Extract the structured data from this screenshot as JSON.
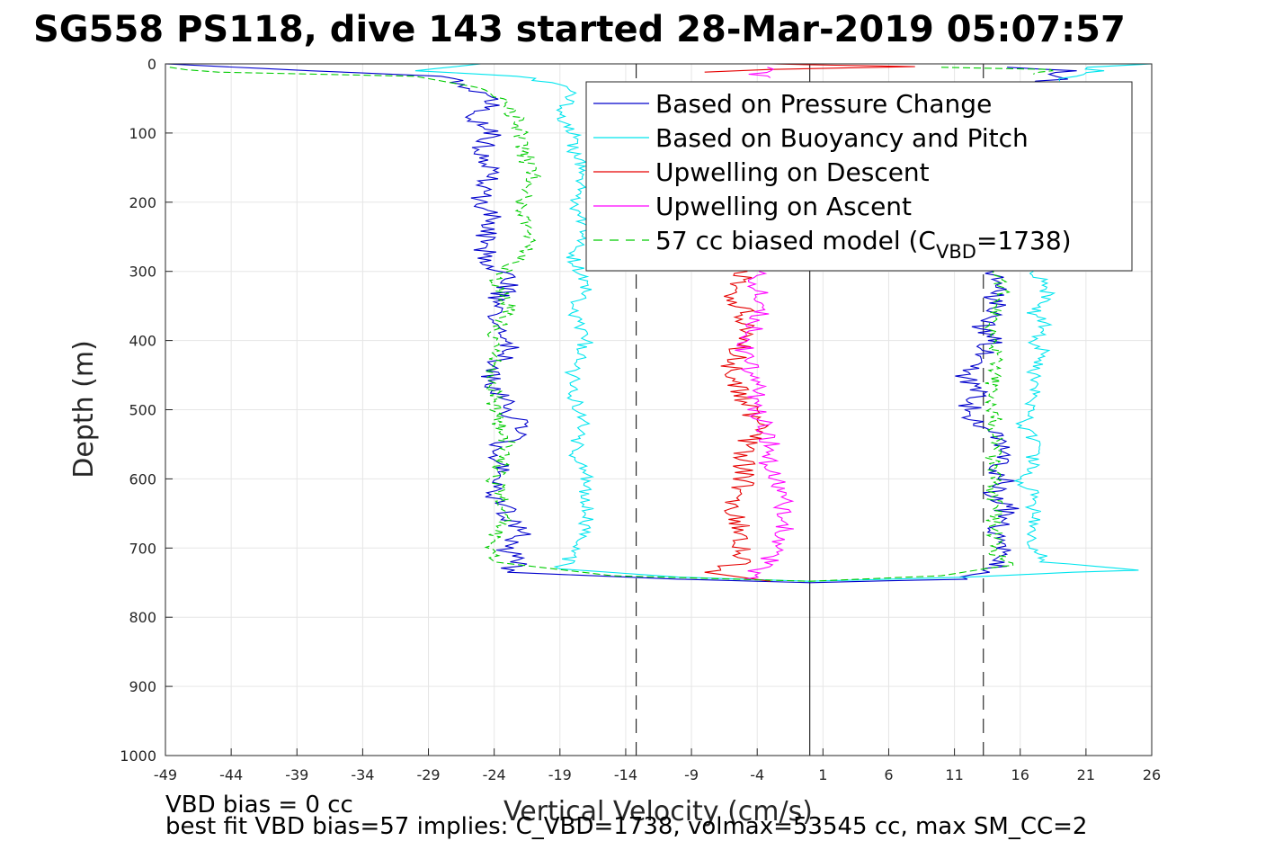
{
  "chart_data": {
    "type": "line",
    "title": "SG558 PS118, dive 143 started 28-Mar-2019 05:07:57",
    "xlabel": "Vertical Velocity (cm/s)",
    "ylabel": "Depth (m)",
    "xlim": [
      -49,
      26
    ],
    "ylim": [
      0,
      1000
    ],
    "y_reversed": true,
    "grid": true,
    "x_ticks": [
      -49,
      -44,
      -39,
      -34,
      -29,
      -24,
      -19,
      -14,
      -9,
      -4,
      1,
      6,
      11,
      16,
      21,
      26
    ],
    "y_ticks": [
      0,
      100,
      200,
      300,
      400,
      500,
      600,
      700,
      800,
      900,
      1000
    ],
    "legend_position": "top-right",
    "reference_lines": [
      {
        "x": 0,
        "style": "solid",
        "color": "#000000"
      },
      {
        "x": -13.2,
        "style": "dashed",
        "color": "#000000"
      },
      {
        "x": 13.2,
        "style": "dashed",
        "color": "#000000"
      }
    ],
    "series": [
      {
        "name": "Based on Pressure Change",
        "color": "#0000cc",
        "style": "solid",
        "points": [
          [
            -49,
            0
          ],
          [
            -38,
            10
          ],
          [
            -28,
            18
          ],
          [
            -26,
            30
          ],
          [
            -25,
            45
          ],
          [
            -24,
            60
          ],
          [
            -26,
            80
          ],
          [
            -24,
            100
          ],
          [
            -25,
            130
          ],
          [
            -24,
            160
          ],
          [
            -25,
            200
          ],
          [
            -24,
            230
          ],
          [
            -25,
            260
          ],
          [
            -24,
            290
          ],
          [
            -23,
            320
          ],
          [
            -24,
            350
          ],
          [
            -24,
            380
          ],
          [
            -23,
            410
          ],
          [
            -24,
            440
          ],
          [
            -24,
            470
          ],
          [
            -23,
            500
          ],
          [
            -22,
            530
          ],
          [
            -24,
            560
          ],
          [
            -23,
            590
          ],
          [
            -24,
            620
          ],
          [
            -23,
            650
          ],
          [
            -22,
            680
          ],
          [
            -23,
            700
          ],
          [
            -22,
            720
          ],
          [
            -23,
            735
          ],
          [
            -10,
            745
          ],
          [
            0,
            750
          ],
          [
            11,
            745
          ],
          [
            14,
            735
          ],
          [
            15,
            715
          ],
          [
            15,
            700
          ],
          [
            14,
            680
          ],
          [
            15,
            660
          ],
          [
            15,
            640
          ],
          [
            14,
            620
          ],
          [
            15,
            600
          ],
          [
            14,
            580
          ],
          [
            15,
            560
          ],
          [
            14,
            540
          ],
          [
            13,
            520
          ],
          [
            12,
            500
          ],
          [
            13,
            480
          ],
          [
            12,
            460
          ],
          [
            12,
            440
          ],
          [
            13,
            420
          ],
          [
            14,
            400
          ],
          [
            13,
            380
          ],
          [
            14,
            360
          ],
          [
            14,
            340
          ],
          [
            15,
            320
          ],
          [
            14,
            300
          ]
        ],
        "top_segment": [
          [
            15,
            5
          ],
          [
            20,
            10
          ],
          [
            18,
            15
          ],
          [
            19,
            22
          ],
          [
            17,
            28
          ]
        ]
      },
      {
        "name": "Based on Buoyancy and Pitch",
        "color": "#00e5ee",
        "style": "solid",
        "points": [
          [
            -25,
            0
          ],
          [
            -30,
            10
          ],
          [
            -22,
            18
          ],
          [
            -19,
            30
          ],
          [
            -18,
            45
          ],
          [
            -19,
            70
          ],
          [
            -18,
            100
          ],
          [
            -18,
            130
          ],
          [
            -17,
            160
          ],
          [
            -18,
            200
          ],
          [
            -17,
            240
          ],
          [
            -18,
            280
          ],
          [
            -17,
            320
          ],
          [
            -18,
            360
          ],
          [
            -17,
            400
          ],
          [
            -18,
            440
          ],
          [
            -18,
            480
          ],
          [
            -17,
            520
          ],
          [
            -18,
            560
          ],
          [
            -17,
            600
          ],
          [
            -17,
            640
          ],
          [
            -17,
            680
          ],
          [
            -18,
            710
          ],
          [
            -19,
            730
          ],
          [
            -10,
            742
          ],
          [
            0,
            748
          ],
          [
            12,
            742
          ],
          [
            20,
            735
          ],
          [
            25,
            732
          ],
          [
            18,
            720
          ],
          [
            17,
            700
          ],
          [
            17,
            680
          ],
          [
            17,
            650
          ],
          [
            17,
            620
          ],
          [
            16,
            600
          ],
          [
            17,
            580
          ],
          [
            17,
            560
          ],
          [
            17,
            540
          ],
          [
            16,
            520
          ],
          [
            17,
            500
          ],
          [
            17,
            480
          ],
          [
            17,
            460
          ],
          [
            17,
            440
          ],
          [
            18,
            420
          ],
          [
            17,
            400
          ],
          [
            18,
            380
          ],
          [
            17,
            360
          ],
          [
            18,
            340
          ],
          [
            18,
            320
          ],
          [
            17,
            300
          ]
        ],
        "top_segment": [
          [
            26,
            0
          ],
          [
            21,
            5
          ],
          [
            22,
            10
          ],
          [
            20,
            18
          ],
          [
            19,
            25
          ]
        ]
      },
      {
        "name": "Upwelling on Descent",
        "color": "#e60000",
        "style": "solid",
        "points": [
          [
            -5,
            300
          ],
          [
            -6,
            330
          ],
          [
            -5,
            360
          ],
          [
            -5,
            400
          ],
          [
            -6,
            440
          ],
          [
            -5,
            480
          ],
          [
            -4,
            520
          ],
          [
            -5,
            560
          ],
          [
            -5,
            600
          ],
          [
            -6,
            640
          ],
          [
            -5,
            680
          ],
          [
            -5,
            720
          ],
          [
            -8,
            735
          ],
          [
            -3,
            748
          ]
        ],
        "top_segment": [
          [
            -3,
            0
          ],
          [
            2,
            2
          ],
          [
            8,
            4
          ],
          [
            -3,
            8
          ],
          [
            -8,
            12
          ]
        ]
      },
      {
        "name": "Upwelling on Ascent",
        "color": "#ff00ff",
        "style": "solid",
        "points": [
          [
            -4,
            300
          ],
          [
            -4,
            340
          ],
          [
            -4,
            380
          ],
          [
            -5,
            420
          ],
          [
            -4,
            460
          ],
          [
            -4,
            500
          ],
          [
            -3,
            540
          ],
          [
            -3,
            580
          ],
          [
            -2,
            620
          ],
          [
            -2,
            660
          ],
          [
            -2,
            700
          ],
          [
            -4,
            730
          ],
          [
            -5,
            745
          ]
        ],
        "top_segment": [
          [
            -4,
            5
          ],
          [
            -3,
            10
          ],
          [
            -4,
            15
          ],
          [
            -3,
            20
          ]
        ]
      },
      {
        "name": "57 cc biased model (C",
        "name_sub": "VBD",
        "name_suffix": "=1738)",
        "color": "#00cc00",
        "style": "dashed",
        "points": [
          [
            -49,
            5
          ],
          [
            -45,
            12
          ],
          [
            -30,
            18
          ],
          [
            -25,
            35
          ],
          [
            -23,
            60
          ],
          [
            -22,
            90
          ],
          [
            -22,
            120
          ],
          [
            -21,
            160
          ],
          [
            -22,
            200
          ],
          [
            -21,
            240
          ],
          [
            -22,
            280
          ],
          [
            -24,
            310
          ],
          [
            -23,
            350
          ],
          [
            -24,
            400
          ],
          [
            -24,
            450
          ],
          [
            -24,
            500
          ],
          [
            -23,
            550
          ],
          [
            -24,
            600
          ],
          [
            -23,
            650
          ],
          [
            -24,
            690
          ],
          [
            -24,
            720
          ],
          [
            -15,
            740
          ],
          [
            0,
            748
          ],
          [
            10,
            740
          ],
          [
            15,
            725
          ],
          [
            14,
            700
          ],
          [
            14,
            660
          ],
          [
            14,
            620
          ],
          [
            14,
            590
          ],
          [
            14,
            560
          ],
          [
            14,
            520
          ],
          [
            14,
            480
          ],
          [
            14,
            440
          ],
          [
            14,
            400
          ],
          [
            14,
            360
          ],
          [
            15,
            330
          ],
          [
            14,
            300
          ]
        ],
        "top_segment": [
          [
            10,
            5
          ],
          [
            18,
            8
          ],
          [
            18,
            12
          ],
          [
            17,
            15
          ]
        ]
      }
    ]
  },
  "footnotes": {
    "line1": "VBD bias = 0 cc",
    "line2": "best fit VBD bias=57 implies: C_VBD=1738, volmax=53545 cc, max SM_CC=2"
  }
}
